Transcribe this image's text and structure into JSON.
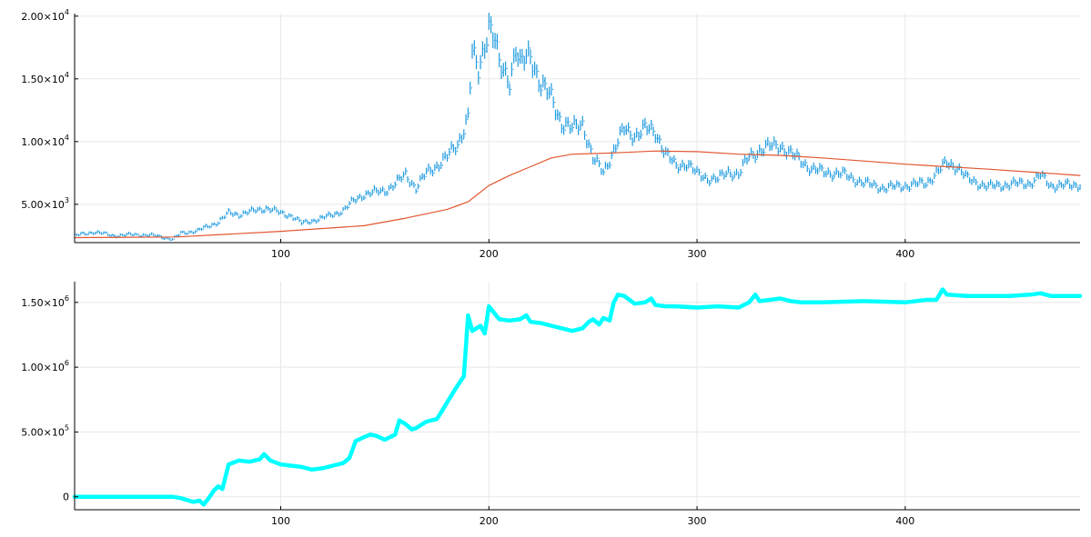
{
  "chart_data": [
    {
      "type": "line",
      "title": "",
      "xlabel": "",
      "ylabel": "",
      "xlim": [
        1,
        484
      ],
      "ylim": [
        1950,
        20200
      ],
      "grid": true,
      "legend": "none",
      "x_ticks": [
        {
          "value": 100,
          "label": "100"
        },
        {
          "value": 200,
          "label": "200"
        },
        {
          "value": 300,
          "label": "300"
        },
        {
          "value": 400,
          "label": "400"
        }
      ],
      "y_ticks": [
        {
          "value": 5000,
          "mantissa": "5.00×10",
          "exp": "3"
        },
        {
          "value": 10000,
          "mantissa": "1.00×10",
          "exp": "4"
        },
        {
          "value": 15000,
          "mantissa": "1.50×10",
          "exp": "4"
        },
        {
          "value": 20000,
          "mantissa": "2.00×10",
          "exp": "4"
        }
      ],
      "series": [
        {
          "kind": "price-range-bars",
          "color": "#1f9be0",
          "x": [
            1,
            10,
            20,
            30,
            40,
            48,
            52,
            60,
            70,
            75,
            80,
            90,
            93,
            100,
            105,
            110,
            120,
            130,
            135,
            140,
            150,
            155,
            160,
            165,
            170,
            175,
            180,
            185,
            190,
            192,
            195,
            200,
            203,
            205,
            210,
            213,
            215,
            220,
            225,
            230,
            235,
            240,
            245,
            250,
            255,
            260,
            265,
            270,
            275,
            280,
            285,
            290,
            295,
            300,
            305,
            310,
            315,
            320,
            325,
            330,
            335,
            340,
            345,
            350,
            355,
            360,
            370,
            380,
            390,
            400,
            410,
            420,
            425,
            430,
            440,
            450,
            460,
            465,
            470,
            480,
            484
          ],
          "y": [
            2500,
            2800,
            2500,
            2600,
            2500,
            2200,
            2700,
            2900,
            3600,
            4300,
            4200,
            4600,
            4700,
            4300,
            4100,
            3500,
            3900,
            4500,
            5300,
            5800,
            6100,
            6600,
            7400,
            6300,
            7500,
            8100,
            8800,
            9800,
            12000,
            17000,
            15500,
            19500,
            18000,
            16000,
            15000,
            17500,
            16000,
            17000,
            14500,
            13500,
            11500,
            11000,
            11500,
            8600,
            7600,
            9300,
            11000,
            10500,
            11000,
            10800,
            9000,
            8000,
            8300,
            7400,
            7100,
            7000,
            7600,
            7400,
            8800,
            9300,
            9600,
            9700,
            9000,
            8500,
            7800,
            7600,
            7400,
            6700,
            6300,
            6500,
            6700,
            8300,
            8000,
            7000,
            6400,
            6600,
            6700,
            7300,
            6500,
            6500,
            6600
          ]
        },
        {
          "kind": "moving-average",
          "color": "#e2562f",
          "x": [
            1,
            50,
            100,
            140,
            160,
            180,
            190,
            200,
            210,
            220,
            230,
            240,
            260,
            280,
            300,
            320,
            340,
            360,
            380,
            400,
            440,
            484
          ],
          "y": [
            2350,
            2400,
            2850,
            3300,
            3900,
            4600,
            5200,
            6500,
            7300,
            8000,
            8700,
            9000,
            9100,
            9250,
            9200,
            9000,
            8900,
            8700,
            8450,
            8200,
            7800,
            7300
          ]
        }
      ]
    },
    {
      "type": "line",
      "title": "",
      "xlabel": "",
      "ylabel": "",
      "xlim": [
        1,
        484
      ],
      "ylim": [
        -100000,
        1660000
      ],
      "grid": true,
      "legend": "none",
      "x_ticks": [
        {
          "value": 100,
          "label": "100"
        },
        {
          "value": 200,
          "label": "200"
        },
        {
          "value": 300,
          "label": "300"
        },
        {
          "value": 400,
          "label": "400"
        }
      ],
      "y_ticks": [
        {
          "value": 0,
          "mantissa": "0",
          "exp": ""
        },
        {
          "value": 500000,
          "mantissa": "5.00×10",
          "exp": "5"
        },
        {
          "value": 1000000,
          "mantissa": "1.00×10",
          "exp": "6"
        },
        {
          "value": 1500000,
          "mantissa": "1.50×10",
          "exp": "6"
        }
      ],
      "series": [
        {
          "kind": "line",
          "color": "#00ffff",
          "x": [
            1,
            48,
            52,
            55,
            58,
            61,
            63,
            65,
            68,
            70,
            72,
            75,
            80,
            85,
            90,
            92,
            95,
            100,
            105,
            110,
            115,
            120,
            125,
            130,
            133,
            136,
            140,
            143,
            146,
            150,
            155,
            157,
            160,
            163,
            165,
            170,
            175,
            177,
            180,
            185,
            188,
            190,
            192,
            194,
            196,
            198,
            200,
            202,
            205,
            210,
            215,
            218,
            220,
            225,
            230,
            235,
            240,
            245,
            248,
            250,
            253,
            255,
            258,
            260,
            262,
            265,
            270,
            275,
            278,
            280,
            285,
            290,
            300,
            310,
            320,
            325,
            328,
            330,
            335,
            340,
            345,
            350,
            360,
            380,
            400,
            410,
            415,
            418,
            420,
            430,
            440,
            450,
            460,
            465,
            470,
            484
          ],
          "y": [
            0,
            0,
            -10000,
            -25000,
            -40000,
            -30000,
            -60000,
            -20000,
            50000,
            80000,
            60000,
            250000,
            280000,
            270000,
            290000,
            330000,
            280000,
            250000,
            240000,
            230000,
            210000,
            220000,
            240000,
            260000,
            300000,
            430000,
            460000,
            480000,
            470000,
            440000,
            480000,
            590000,
            560000,
            520000,
            530000,
            580000,
            600000,
            650000,
            730000,
            860000,
            930000,
            1400000,
            1280000,
            1300000,
            1320000,
            1260000,
            1470000,
            1430000,
            1370000,
            1360000,
            1370000,
            1400000,
            1350000,
            1340000,
            1320000,
            1300000,
            1280000,
            1300000,
            1350000,
            1370000,
            1330000,
            1380000,
            1360000,
            1500000,
            1560000,
            1550000,
            1490000,
            1500000,
            1530000,
            1480000,
            1470000,
            1470000,
            1460000,
            1470000,
            1460000,
            1500000,
            1560000,
            1510000,
            1520000,
            1530000,
            1510000,
            1500000,
            1500000,
            1510000,
            1500000,
            1520000,
            1520000,
            1600000,
            1560000,
            1550000,
            1550000,
            1550000,
            1560000,
            1570000,
            1550000,
            1550000
          ]
        }
      ]
    }
  ]
}
